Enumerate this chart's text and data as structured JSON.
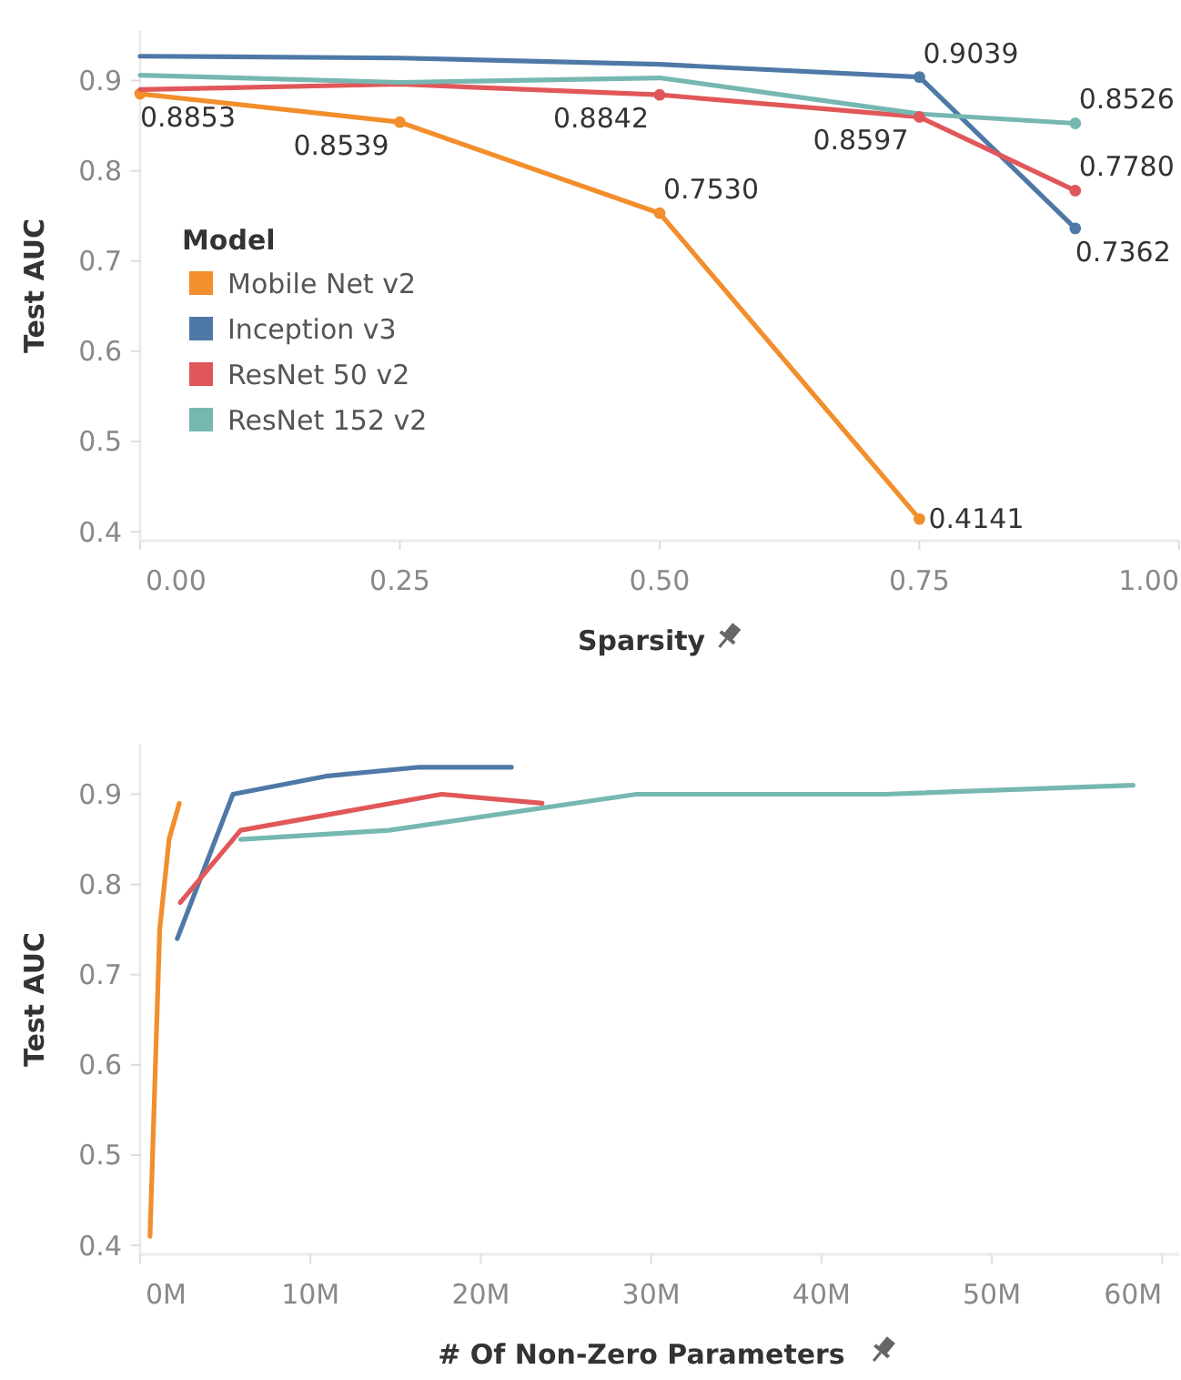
{
  "chart_data": [
    {
      "type": "line",
      "xlabel": "Sparsity",
      "ylabel": "Test AUC",
      "legend_title": "Model",
      "legend": "left",
      "grid": false,
      "x": [
        0,
        0.25,
        0.5,
        0.75,
        0.9
      ],
      "xlim": [
        0,
        1
      ],
      "xticks": [
        {
          "value": 0,
          "label": "0.00"
        },
        {
          "value": 0.25,
          "label": "0.25"
        },
        {
          "value": 0.5,
          "label": "0.50"
        },
        {
          "value": 0.75,
          "label": "0.75"
        },
        {
          "value": 1,
          "label": "1.00"
        }
      ],
      "ylim": [
        0.39,
        0.955
      ],
      "yticks": [
        0.4,
        0.5,
        0.6,
        0.7,
        0.8,
        0.9
      ],
      "series": [
        {
          "name": "Mobile Net v2",
          "color": "#f28e2b",
          "marker": "circle",
          "values": [
            0.8853,
            0.8539,
            0.753,
            0.4141,
            null
          ],
          "value_labels": [
            "0.8853",
            "0.8539",
            "0.7530",
            "0.4141",
            null
          ]
        },
        {
          "name": "Inception v3",
          "color": "#4e79a7",
          "values": [
            0.927,
            0.925,
            0.918,
            0.9039,
            0.7362
          ],
          "value_labels": [
            null,
            null,
            null,
            "0.9039",
            "0.7362"
          ]
        },
        {
          "name": "ResNet 50 v2",
          "color": "#e15759",
          "values": [
            0.89,
            0.896,
            0.8842,
            0.8597,
            0.778
          ],
          "value_labels": [
            null,
            null,
            "0.8842",
            "0.8597",
            "0.7780"
          ]
        },
        {
          "name": "ResNet 152 v2",
          "color": "#76b7b2",
          "values": [
            0.906,
            0.898,
            0.903,
            0.863,
            0.8526
          ],
          "value_labels": [
            null,
            null,
            null,
            null,
            "0.8526"
          ]
        }
      ]
    },
    {
      "type": "line",
      "xlabel": "# Of Non-Zero Parameters",
      "ylabel": "Test AUC",
      "legend": false,
      "grid": false,
      "xlim": [
        0,
        61
      ],
      "xticks": [
        {
          "value": 0,
          "label": "0M"
        },
        {
          "value": 10,
          "label": "10M"
        },
        {
          "value": 20,
          "label": "20M"
        },
        {
          "value": 30,
          "label": "30M"
        },
        {
          "value": 40,
          "label": "40M"
        },
        {
          "value": 50,
          "label": "50M"
        },
        {
          "value": 60,
          "label": "60M"
        }
      ],
      "ylim": [
        0.39,
        0.955
      ],
      "yticks": [
        0.4,
        0.5,
        0.6,
        0.7,
        0.8,
        0.9
      ],
      "series": [
        {
          "color": "#f28e2b",
          "x": [
            2.3,
            1.7,
            1.15,
            0.58
          ],
          "values": [
            0.89,
            0.85,
            0.75,
            0.41
          ]
        },
        {
          "color": "#4e79a7",
          "x": [
            21.8,
            16.4,
            10.9,
            5.45,
            2.18
          ],
          "values": [
            0.93,
            0.93,
            0.92,
            0.9,
            0.74
          ]
        },
        {
          "color": "#e15759",
          "x": [
            23.6,
            17.7,
            11.8,
            5.9,
            2.36
          ],
          "values": [
            0.89,
            0.9,
            0.88,
            0.86,
            0.78
          ]
        },
        {
          "color": "#76b7b2",
          "x": [
            58.3,
            43.7,
            29.15,
            14.6,
            5.9
          ],
          "values": [
            0.91,
            0.9,
            0.9,
            0.86,
            0.85
          ]
        }
      ]
    }
  ]
}
